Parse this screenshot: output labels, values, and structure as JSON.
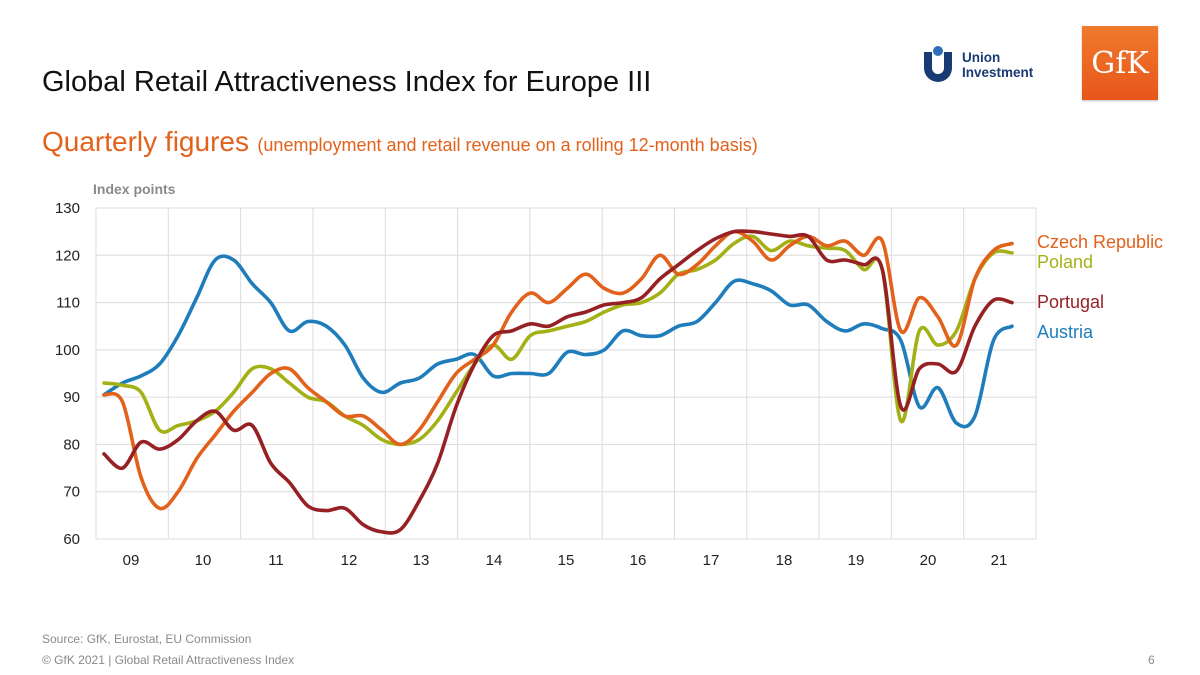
{
  "slide": {
    "title": "Global Retail Attractiveness Index for Europe III",
    "subtitle_main": "Quarterly figures",
    "subtitle_note": "(unemployment and retail revenue on a rolling 12-month basis)",
    "source": "Source: GfK, Eurostat, EU Commission",
    "copyright": "© GfK 2021 | Global Retail Attractiveness Index",
    "page_number": "6"
  },
  "logos": {
    "union_investment": {
      "line1": "Union",
      "line2": "Investment",
      "color": "#1a3a73",
      "accent": "#2e6fb7"
    },
    "gfk": {
      "text": "GfK",
      "color": "#e7561b"
    }
  },
  "chart_data": {
    "type": "line",
    "title": "",
    "ylabel": "Index points",
    "xlabel": "",
    "ylim": [
      60,
      130
    ],
    "yticks": [
      60,
      70,
      80,
      90,
      100,
      110,
      120,
      130
    ],
    "x_tick_labels": [
      "09",
      "10",
      "11",
      "12",
      "13",
      "14",
      "15",
      "16",
      "17",
      "18",
      "19",
      "20",
      "21"
    ],
    "grid": true,
    "legend": "right, labels at line ends",
    "series": [
      {
        "name": "Czech Republic",
        "color": "#e2611b",
        "values": [
          90.5,
          89,
          73,
          66.5,
          70,
          77,
          82,
          87,
          91,
          95,
          96,
          92,
          89,
          86,
          86,
          83,
          80,
          83,
          89,
          95,
          98,
          101,
          108,
          112,
          110,
          113,
          116,
          113,
          112,
          115,
          120,
          116,
          118,
          122,
          125,
          123,
          119,
          122,
          124,
          122,
          123,
          120,
          123,
          104,
          111,
          107,
          101,
          115,
          121,
          122.5
        ]
      },
      {
        "name": "Poland",
        "color": "#a3b117",
        "values": [
          93,
          92.5,
          91,
          83,
          84,
          85,
          87,
          91,
          96,
          96,
          93,
          90,
          89,
          86,
          84,
          81,
          80,
          81,
          85,
          91,
          97,
          101,
          98,
          103,
          104,
          105,
          106,
          108,
          109.5,
          110,
          112,
          116,
          117,
          119,
          122.5,
          124,
          121,
          123,
          122,
          121.5,
          121,
          117,
          117,
          85,
          104,
          101,
          104,
          115,
          120.5,
          120.5
        ]
      },
      {
        "name": "Portugal",
        "color": "#962125",
        "values": [
          78,
          75,
          80.5,
          79,
          81,
          85,
          87,
          83,
          84,
          76,
          72,
          67,
          66,
          66.5,
          63,
          61.5,
          62,
          68,
          76,
          88,
          97,
          103,
          104,
          105.5,
          105,
          107,
          108,
          109.5,
          110,
          111,
          115,
          118,
          121,
          123.5,
          125,
          125,
          124.5,
          124,
          124,
          119,
          119,
          118,
          117,
          88,
          96,
          97,
          95.5,
          105,
          110.5,
          110
        ]
      },
      {
        "name": "Austria",
        "color": "#1f7dbc",
        "values": [
          90.5,
          93,
          94.5,
          97,
          103,
          111,
          119,
          119,
          114,
          110,
          104,
          106,
          105,
          101,
          94,
          91,
          93,
          94,
          97,
          98,
          99,
          94.5,
          95,
          95,
          95,
          99.5,
          99,
          100,
          104,
          103,
          103,
          105,
          106,
          110,
          114.5,
          114,
          112.5,
          109.5,
          109.5,
          106,
          104,
          105.5,
          104.5,
          102,
          88,
          92,
          84.5,
          86,
          102,
          105
        ]
      }
    ]
  }
}
